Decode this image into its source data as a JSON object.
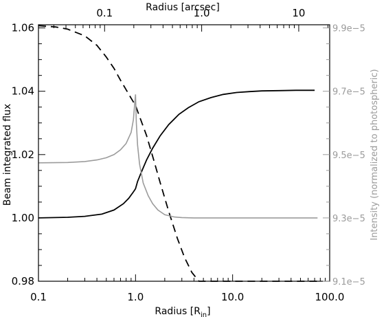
{
  "chart_data": {
    "type": "line",
    "title": "",
    "x_scale": "log",
    "xlim": [
      0.1,
      100
    ],
    "xlabel": "Radius [R",
    "xlabel_sub": "in",
    "xlabel_close": "]",
    "xticks": [
      0.1,
      1.0,
      10.0,
      100.0
    ],
    "xtick_labels": [
      "0.1",
      "1.0",
      "10.0",
      "100.0"
    ],
    "top_axis": {
      "label": "Radius [arcsec]",
      "scale": "log",
      "tick_labels": [
        "0.1",
        "1.0",
        "10"
      ]
    },
    "ylabel": "Beam integrated flux",
    "ylim": [
      0.98,
      1.061
    ],
    "yticks": [
      0.98,
      1.0,
      1.02,
      1.04,
      1.06
    ],
    "ytick_labels": [
      "0.98",
      "1.00",
      "1.02",
      "1.04",
      "1.06"
    ],
    "y2label": "Intensity (normalized to photospheric)",
    "y2_color": "#9b9b9b",
    "y2lim": [
      9.1e-05,
      9.91e-05
    ],
    "y2ticks": [
      9.1e-05,
      9.3e-05,
      9.5e-05,
      9.7e-05,
      9.9e-05
    ],
    "y2tick_labels": [
      "9.1e−5",
      "9.3e−5",
      "9.5e−5",
      "9.7e−5",
      "9.9e−5"
    ],
    "series": [
      {
        "style": "solid",
        "color": "#000000",
        "axis": "left",
        "x": [
          0.1,
          0.2,
          0.3,
          0.45,
          0.6,
          0.75,
          0.85,
          0.95,
          1.0,
          1.05,
          1.15,
          1.3,
          1.5,
          1.8,
          2.2,
          2.8,
          3.5,
          4.5,
          6,
          8,
          11,
          15,
          20,
          30,
          45,
          70
        ],
        "y": [
          1.0,
          1.0002,
          1.0005,
          1.0012,
          1.0025,
          1.0045,
          1.0062,
          1.0082,
          1.0092,
          1.0115,
          1.0145,
          1.0183,
          1.022,
          1.026,
          1.0295,
          1.0327,
          1.0348,
          1.0367,
          1.038,
          1.039,
          1.0396,
          1.0399,
          1.0401,
          1.0402,
          1.0403,
          1.0403
        ]
      },
      {
        "style": "dashed",
        "color": "#000000",
        "axis": "left",
        "x": [
          0.1,
          0.15,
          0.2,
          0.3,
          0.4,
          0.5,
          0.6,
          0.7,
          0.8,
          0.9,
          1.0,
          1.1,
          1.3,
          1.5,
          1.8,
          2.2,
          2.7,
          3.2,
          3.8,
          4.5,
          6,
          10,
          20,
          50,
          75
        ],
        "y": [
          1.0607,
          1.0603,
          1.0596,
          1.0575,
          1.0545,
          1.0508,
          1.0472,
          1.0435,
          1.0405,
          1.0378,
          1.0355,
          1.032,
          1.026,
          1.0195,
          1.011,
          1.002,
          0.9935,
          0.9875,
          0.9828,
          0.98,
          0.98,
          0.98,
          0.98,
          0.98,
          0.98
        ]
      },
      {
        "style": "solid",
        "color": "#9b9b9b",
        "axis": "right",
        "x": [
          0.1,
          0.2,
          0.3,
          0.4,
          0.5,
          0.6,
          0.7,
          0.8,
          0.9,
          0.95,
          0.98,
          1.0,
          1.02,
          1.05,
          1.1,
          1.2,
          1.35,
          1.5,
          1.7,
          2.0,
          2.5,
          3.0,
          4.0,
          6.0,
          10,
          20,
          50,
          75
        ],
        "y": [
          9.474e-05,
          9.475e-05,
          9.478e-05,
          9.483e-05,
          9.49e-05,
          9.5e-05,
          9.515e-05,
          9.535e-05,
          9.57e-05,
          9.61e-05,
          9.66e-05,
          9.69e-05,
          9.6e-05,
          9.53e-05,
          9.47e-05,
          9.41e-05,
          9.37e-05,
          9.345e-05,
          9.325e-05,
          9.31e-05,
          9.303e-05,
          9.301e-05,
          9.3e-05,
          9.3e-05,
          9.3e-05,
          9.3e-05,
          9.3e-05,
          9.3e-05
        ]
      }
    ]
  }
}
